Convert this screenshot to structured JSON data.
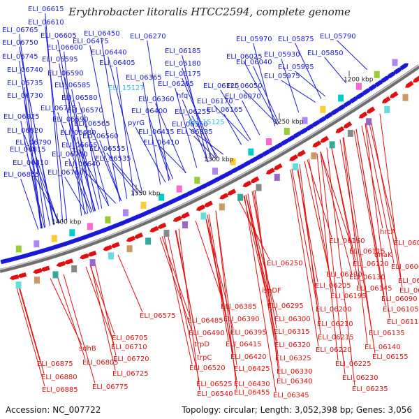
{
  "title": "Erythrobacter litoralis HTCC2594, complete genome",
  "footer": {
    "accession": "Accession: NC_007722",
    "topology": "Topology: circular; Length: 3,052,398 bp; Genes: 3,056"
  },
  "colors": {
    "forward_label": "#1a1ad6",
    "reverse_label": "#e01010",
    "special_label": "#33bbdd",
    "backbone": "#6e6e6e",
    "forward_gene": "#1a1ad6",
    "reverse_gene": "#e01010"
  },
  "scale_ticks": [
    "1200 kbp",
    "1250 kbp",
    "1300 kbp",
    "1350 kbp",
    "1400 kbp"
  ],
  "forward_labels": [
    "ELI_06615",
    "ELI_06610",
    "ELI_06765",
    "ELI_06605",
    "ELI_06750",
    "ELI_06600",
    "ELI_06745",
    "ELI_06595",
    "ELI_06740",
    "ELI_06590",
    "ELI_06735",
    "ELI_06585",
    "ELI_06730",
    "ELI_06580",
    "ELI_06715",
    "ELI_06570",
    "ELI_06825",
    "ELI_06690",
    "ELI_06565",
    "ELI_06820",
    "ELI_06680",
    "ELI_06560",
    "ELI_06790",
    "ELI_06665",
    "ELI_06555",
    "ELI_06815",
    "ELI_06700",
    "ELI_06535",
    "ELI_06810",
    "ELI_06640",
    "ELI_06855",
    "ELI_06760",
    "ELI_06450",
    "ELI_06475",
    "ELI_06440",
    "ELI_06405",
    "ELI_06270",
    "ELI_06185",
    "ELI_06180",
    "ELI_06175",
    "ELI_06365",
    "ELI_06265",
    "hfq",
    "ELI_06360",
    "ELI_06170",
    "ELI_06165",
    "ELI_06400",
    "ELI_06255",
    "pyrG",
    "ELI_06350",
    "ELI_06435",
    "ELI_06335",
    "ELI_06410",
    "ELI_06125",
    "ELI_06050",
    "ELI_06070",
    "ELI_05970",
    "ELI_05875",
    "ELI_05790",
    "ELI_06025",
    "ELI_05930",
    "ELI_05850",
    "ELI_06040",
    "ELI_05935",
    "ELI_05975"
  ],
  "special_labels": [
    "ELI_15127",
    "ELI_15125"
  ],
  "reverse_labels": [
    "hrcA",
    "ELI_06160",
    "ELI_06030",
    "ELI_06115",
    "dnaK",
    "ELI_06120",
    "ELI_06060",
    "ELI_06130",
    "ELI_06065",
    "ELI_06190",
    "ELI_06145",
    "ELI_06075",
    "ELI_06205",
    "ELI_06195",
    "ELI_06090",
    "ELI_06105",
    "ELI_06200",
    "ELI_06110",
    "ELI_06210",
    "ELI_06135",
    "ELI_06215",
    "ELI_06140",
    "ELI_06220",
    "ELI_06155",
    "ELI_06225",
    "ELI_06230",
    "ELI_06235",
    "ELI_06250",
    "ispDF",
    "ELI_06295",
    "ELI_06385",
    "ELI_06300",
    "ELI_06390",
    "ELI_06315",
    "ELI_06395",
    "ELI_06320",
    "ELI_06415",
    "ELI_06325",
    "ELI_06420",
    "ELI_06330",
    "ELI_06425",
    "ELI_06340",
    "ELI_06430",
    "ELI_06345",
    "ELI_06455",
    "ELI_06575",
    "ELI_06485",
    "ELI_06490",
    "trpD",
    "trpC",
    "ELI_06520",
    "ELI_06525",
    "ELI_06540",
    "ELI_06705",
    "ELI_06710",
    "sdhB",
    "ELI_06720",
    "ELI_06725",
    "ELI_06805",
    "ELI_06775",
    "ELI_06875",
    "ELI_06880",
    "ELI_06885"
  ]
}
